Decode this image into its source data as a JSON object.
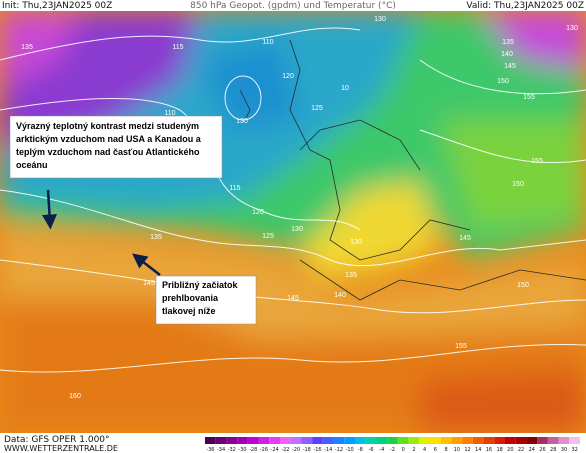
{
  "header": {
    "init": "Init: Thu,23JAN2025 00Z",
    "title": "850 hPa Geopot. (gpdm) und Temperatur (°C)",
    "valid": "Valid: Thu,23JAN2025 00Z"
  },
  "annotations": [
    {
      "lines": [
        "Výrazný teplotný kontrast medzi studeným",
        "arktickým vzduchom nad USA a Kanadou a",
        "teplým vzduchom nad časťou Atlantického",
        "oceánu"
      ]
    },
    {
      "lines": [
        "Približný začiatok",
        "prehlbovania",
        "tlakovej níže"
      ]
    }
  ],
  "contour_labels": [
    "135",
    "115",
    "110",
    "120",
    "130",
    "125",
    "110",
    "115",
    "120",
    "125",
    "130",
    "130",
    "135",
    "145",
    "145",
    "140",
    "135",
    "145",
    "150",
    "155",
    "160",
    "150",
    "155",
    "150",
    "145",
    "140",
    "135",
    "130",
    "155",
    "130",
    "10"
  ],
  "colorbar": [
    -36,
    -34,
    -32,
    -30,
    -28,
    -26,
    -24,
    -22,
    -20,
    -18,
    -16,
    -14,
    -12,
    -10,
    -8,
    -6,
    -4,
    -2,
    0,
    2,
    4,
    6,
    8,
    10,
    12,
    14,
    16,
    18,
    20,
    22,
    24,
    26,
    28,
    30,
    32
  ],
  "footer": {
    "data": "Data: GFS OPER 1.000°",
    "site": "WWW.WETTERZENTRALE.DE"
  }
}
